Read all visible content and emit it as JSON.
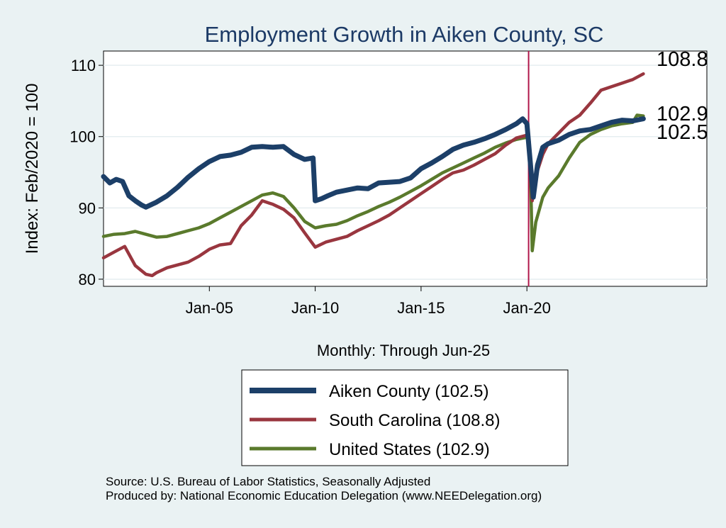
{
  "chart_data": {
    "type": "line",
    "title": "Employment Growth in Aiken  County, SC",
    "xlabel": "Monthly: Through Jun-25",
    "ylabel": "Index: Feb/2020 = 100",
    "ylim": [
      79,
      112
    ],
    "xlim": [
      2000.0,
      2028.5
    ],
    "y_ticks": [
      80,
      90,
      100,
      110
    ],
    "x_ticks": [
      {
        "label": "Jan-05",
        "value": 2005.0
      },
      {
        "label": "Jan-10",
        "value": 2010.0
      },
      {
        "label": "Jan-15",
        "value": 2015.0
      },
      {
        "label": "Jan-20",
        "value": 2020.0
      }
    ],
    "reference_line": {
      "x": 2020.08,
      "color": "#b0164a"
    },
    "series": [
      {
        "name": "United States (102.9)",
        "end_label": "102.9",
        "color": "#5a7a2c",
        "width": 4.5,
        "points": [
          [
            2000.0,
            86.0
          ],
          [
            2000.5,
            86.3
          ],
          [
            2001.0,
            86.4
          ],
          [
            2001.5,
            86.7
          ],
          [
            2002.0,
            86.3
          ],
          [
            2002.5,
            85.9
          ],
          [
            2003.0,
            86.0
          ],
          [
            2003.5,
            86.4
          ],
          [
            2004.0,
            86.8
          ],
          [
            2004.5,
            87.2
          ],
          [
            2005.0,
            87.8
          ],
          [
            2005.5,
            88.6
          ],
          [
            2006.0,
            89.4
          ],
          [
            2006.5,
            90.2
          ],
          [
            2007.0,
            91.0
          ],
          [
            2007.5,
            91.8
          ],
          [
            2008.0,
            92.1
          ],
          [
            2008.5,
            91.6
          ],
          [
            2009.0,
            90.0
          ],
          [
            2009.5,
            88.1
          ],
          [
            2010.0,
            87.2
          ],
          [
            2010.5,
            87.5
          ],
          [
            2011.0,
            87.7
          ],
          [
            2011.5,
            88.2
          ],
          [
            2012.0,
            88.9
          ],
          [
            2012.5,
            89.5
          ],
          [
            2013.0,
            90.2
          ],
          [
            2013.5,
            90.8
          ],
          [
            2014.0,
            91.5
          ],
          [
            2014.5,
            92.3
          ],
          [
            2015.0,
            93.1
          ],
          [
            2015.5,
            94.0
          ],
          [
            2016.0,
            94.9
          ],
          [
            2016.5,
            95.6
          ],
          [
            2017.0,
            96.3
          ],
          [
            2017.5,
            97.0
          ],
          [
            2018.0,
            97.7
          ],
          [
            2018.5,
            98.5
          ],
          [
            2019.0,
            99.1
          ],
          [
            2019.5,
            99.6
          ],
          [
            2020.0,
            99.9
          ],
          [
            2020.1,
            99.6
          ],
          [
            2020.17,
            95.0
          ],
          [
            2020.25,
            84.0
          ],
          [
            2020.42,
            88.0
          ],
          [
            2020.75,
            91.5
          ],
          [
            2021.0,
            92.8
          ],
          [
            2021.5,
            94.5
          ],
          [
            2022.0,
            97.0
          ],
          [
            2022.5,
            99.2
          ],
          [
            2023.0,
            100.3
          ],
          [
            2023.5,
            101.0
          ],
          [
            2024.0,
            101.5
          ],
          [
            2024.5,
            101.8
          ],
          [
            2025.0,
            102.0
          ],
          [
            2025.2,
            103.0
          ],
          [
            2025.5,
            102.9
          ]
        ]
      },
      {
        "name": "South Carolina (108.8)",
        "end_label": "108.8",
        "color": "#99363f",
        "width": 4.5,
        "points": [
          [
            2000.0,
            83.0
          ],
          [
            2000.5,
            83.8
          ],
          [
            2001.0,
            84.6
          ],
          [
            2001.5,
            81.9
          ],
          [
            2002.0,
            80.7
          ],
          [
            2002.3,
            80.5
          ],
          [
            2002.5,
            80.9
          ],
          [
            2003.0,
            81.6
          ],
          [
            2003.5,
            82.0
          ],
          [
            2004.0,
            82.4
          ],
          [
            2004.5,
            83.2
          ],
          [
            2005.0,
            84.2
          ],
          [
            2005.5,
            84.8
          ],
          [
            2006.0,
            85.0
          ],
          [
            2006.5,
            87.5
          ],
          [
            2007.0,
            89.0
          ],
          [
            2007.5,
            91.0
          ],
          [
            2008.0,
            90.5
          ],
          [
            2008.5,
            89.8
          ],
          [
            2009.0,
            88.6
          ],
          [
            2009.5,
            86.5
          ],
          [
            2010.0,
            84.5
          ],
          [
            2010.5,
            85.2
          ],
          [
            2011.0,
            85.6
          ],
          [
            2011.5,
            86.0
          ],
          [
            2012.0,
            86.8
          ],
          [
            2012.5,
            87.5
          ],
          [
            2013.0,
            88.2
          ],
          [
            2013.5,
            89.0
          ],
          [
            2014.0,
            90.0
          ],
          [
            2014.5,
            91.0
          ],
          [
            2015.0,
            92.0
          ],
          [
            2015.5,
            93.0
          ],
          [
            2016.0,
            94.0
          ],
          [
            2016.5,
            94.9
          ],
          [
            2017.0,
            95.3
          ],
          [
            2017.5,
            96.0
          ],
          [
            2018.0,
            96.8
          ],
          [
            2018.5,
            97.6
          ],
          [
            2019.0,
            98.8
          ],
          [
            2019.5,
            99.8
          ],
          [
            2020.0,
            100.2
          ],
          [
            2020.1,
            99.5
          ],
          [
            2020.25,
            91.0
          ],
          [
            2020.42,
            94.5
          ],
          [
            2020.75,
            97.5
          ],
          [
            2021.0,
            99.0
          ],
          [
            2021.5,
            100.5
          ],
          [
            2022.0,
            102.0
          ],
          [
            2022.5,
            103.0
          ],
          [
            2023.0,
            104.7
          ],
          [
            2023.5,
            106.5
          ],
          [
            2024.0,
            107.0
          ],
          [
            2024.5,
            107.5
          ],
          [
            2025.0,
            108.0
          ],
          [
            2025.5,
            108.8
          ]
        ]
      },
      {
        "name": "Aiken  County (102.5)",
        "end_label": "102.5",
        "color": "#1c3f68",
        "width": 7,
        "points": [
          [
            2000.0,
            94.4
          ],
          [
            2000.3,
            93.5
          ],
          [
            2000.6,
            94.0
          ],
          [
            2000.9,
            93.7
          ],
          [
            2001.2,
            91.7
          ],
          [
            2001.5,
            91.0
          ],
          [
            2001.8,
            90.4
          ],
          [
            2002.0,
            90.1
          ],
          [
            2002.5,
            90.8
          ],
          [
            2003.0,
            91.7
          ],
          [
            2003.5,
            92.9
          ],
          [
            2004.0,
            94.3
          ],
          [
            2004.5,
            95.5
          ],
          [
            2005.0,
            96.5
          ],
          [
            2005.5,
            97.2
          ],
          [
            2006.0,
            97.4
          ],
          [
            2006.5,
            97.8
          ],
          [
            2007.0,
            98.5
          ],
          [
            2007.5,
            98.6
          ],
          [
            2008.0,
            98.5
          ],
          [
            2008.5,
            98.6
          ],
          [
            2009.0,
            97.5
          ],
          [
            2009.5,
            96.8
          ],
          [
            2009.9,
            97.0
          ],
          [
            2010.0,
            91.0
          ],
          [
            2010.3,
            91.3
          ],
          [
            2010.6,
            91.7
          ],
          [
            2011.0,
            92.2
          ],
          [
            2011.5,
            92.5
          ],
          [
            2012.0,
            92.8
          ],
          [
            2012.5,
            92.7
          ],
          [
            2013.0,
            93.5
          ],
          [
            2013.5,
            93.6
          ],
          [
            2014.0,
            93.7
          ],
          [
            2014.5,
            94.2
          ],
          [
            2015.0,
            95.5
          ],
          [
            2015.5,
            96.3
          ],
          [
            2016.0,
            97.2
          ],
          [
            2016.5,
            98.2
          ],
          [
            2017.0,
            98.8
          ],
          [
            2017.5,
            99.2
          ],
          [
            2018.0,
            99.7
          ],
          [
            2018.5,
            100.3
          ],
          [
            2019.0,
            101.0
          ],
          [
            2019.5,
            101.8
          ],
          [
            2019.8,
            102.5
          ],
          [
            2020.0,
            101.8
          ],
          [
            2020.17,
            96.0
          ],
          [
            2020.3,
            91.5
          ],
          [
            2020.5,
            96.0
          ],
          [
            2020.75,
            98.5
          ],
          [
            2021.0,
            99.0
          ],
          [
            2021.5,
            99.5
          ],
          [
            2022.0,
            100.3
          ],
          [
            2022.5,
            100.8
          ],
          [
            2023.0,
            101.0
          ],
          [
            2023.5,
            101.5
          ],
          [
            2024.0,
            102.0
          ],
          [
            2024.5,
            102.3
          ],
          [
            2025.0,
            102.2
          ],
          [
            2025.5,
            102.5
          ]
        ]
      }
    ],
    "legend": {
      "position": "bottom",
      "entries": [
        {
          "label": "Aiken  County (102.5)",
          "color": "#1c3f68",
          "width": 8
        },
        {
          "label": "South Carolina (108.8)",
          "color": "#99363f",
          "width": 5
        },
        {
          "label": "United States (102.9)",
          "color": "#5a7a2c",
          "width": 5
        }
      ]
    },
    "colors": {
      "title": "#1c3a66",
      "background": "#eaf2f3",
      "plot_bg": "#ffffff",
      "grid": "#e6eef0"
    }
  },
  "source": {
    "line1": "Source: U.S. Bureau of Labor Statistics, Seasonally Adjusted",
    "line2": "Produced by: National Economic Education Delegation (www.NEEDelegation.org)"
  }
}
